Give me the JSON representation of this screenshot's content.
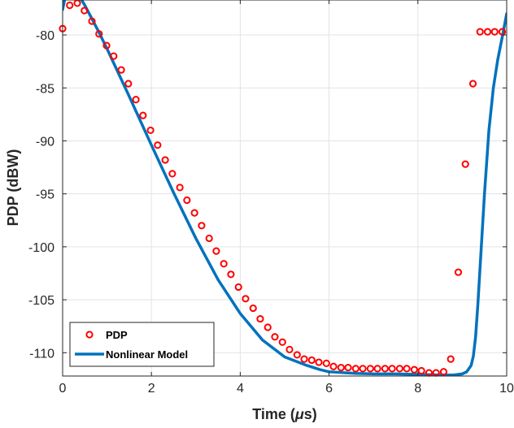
{
  "chart_data": {
    "type": "line",
    "xlabel": "Time (",
    "xlabel_mu": "μ",
    "xlabel_unit": "s)",
    "ylabel": "PDP (dBW)",
    "xlim": [
      0,
      10
    ],
    "ylim": [
      -112.2,
      -76.7
    ],
    "xticks": [
      0,
      2,
      4,
      6,
      8,
      10
    ],
    "xtick_labels": [
      "0",
      "2",
      "4",
      "6",
      "8",
      "10"
    ],
    "yticks": [
      -110,
      -105,
      -100,
      -95,
      -90,
      -85,
      -80
    ],
    "ytick_labels": [
      "-110",
      "-105",
      "-100",
      "-95",
      "-90",
      "-85",
      "-80"
    ],
    "grid": true,
    "legend_position": "bottom-left",
    "series": [
      {
        "name": "PDP",
        "style": "markers",
        "color": "#ff0000",
        "x": [
          0.0,
          0.16,
          0.33,
          0.49,
          0.66,
          0.82,
          0.99,
          1.15,
          1.32,
          1.48,
          1.65,
          1.81,
          1.98,
          2.14,
          2.31,
          2.47,
          2.64,
          2.8,
          2.97,
          3.13,
          3.3,
          3.46,
          3.63,
          3.79,
          3.96,
          4.12,
          4.29,
          4.45,
          4.62,
          4.78,
          4.95,
          5.11,
          5.28,
          5.44,
          5.61,
          5.77,
          5.94,
          6.1,
          6.27,
          6.43,
          6.6,
          6.76,
          6.93,
          7.09,
          7.26,
          7.42,
          7.59,
          7.75,
          7.92,
          8.08,
          8.25,
          8.41,
          8.58,
          8.74,
          8.91,
          9.07,
          9.24,
          9.4,
          9.57,
          9.73,
          9.9
        ],
        "y": [
          -79.4,
          -77.2,
          -77.0,
          -77.7,
          -78.7,
          -79.9,
          -81.0,
          -82.0,
          -83.3,
          -84.6,
          -86.1,
          -87.6,
          -89.0,
          -90.4,
          -91.8,
          -93.1,
          -94.4,
          -95.6,
          -96.8,
          -98.0,
          -99.2,
          -100.4,
          -101.6,
          -102.6,
          -103.8,
          -104.9,
          -105.8,
          -106.8,
          -107.6,
          -108.5,
          -109.0,
          -109.7,
          -110.2,
          -110.6,
          -110.7,
          -110.9,
          -111.0,
          -111.3,
          -111.4,
          -111.4,
          -111.5,
          -111.5,
          -111.5,
          -111.5,
          -111.5,
          -111.5,
          -111.5,
          -111.5,
          -111.6,
          -111.7,
          -111.9,
          -111.9,
          -111.8,
          -110.6,
          -102.4,
          -92.2,
          -84.6,
          -79.7,
          -79.7,
          -79.7,
          -79.7
        ]
      },
      {
        "name": "Nonlinear Model",
        "style": "line",
        "color": "#0072bd",
        "x": [
          0.0,
          0.05,
          0.1,
          0.15,
          0.2,
          0.25,
          0.3,
          0.4,
          0.5,
          0.6,
          0.8,
          1.0,
          1.2,
          1.5,
          2.0,
          2.5,
          3.0,
          3.5,
          4.0,
          4.5,
          5.0,
          5.5,
          5.8,
          6.0,
          6.2,
          6.4,
          6.6,
          7.0,
          7.5,
          8.0,
          8.5,
          8.8,
          9.0,
          9.1,
          9.2,
          9.25,
          9.3,
          9.35,
          9.4,
          9.5,
          9.6,
          9.7,
          9.8,
          9.9,
          10.0
        ],
        "y": [
          -77.6,
          -76.6,
          -76.3,
          -76.0,
          -75.9,
          -75.9,
          -76.0,
          -76.5,
          -77.2,
          -78.0,
          -79.6,
          -81.3,
          -83.1,
          -85.8,
          -90.4,
          -94.9,
          -99.2,
          -103.1,
          -106.3,
          -108.8,
          -110.4,
          -111.2,
          -111.6,
          -111.8,
          -111.85,
          -111.9,
          -111.95,
          -112.0,
          -112.0,
          -112.05,
          -112.1,
          -112.1,
          -112.0,
          -111.8,
          -111.2,
          -110.3,
          -108.5,
          -105.5,
          -102.0,
          -95.0,
          -89.0,
          -85.0,
          -82.3,
          -80.2,
          -78.0
        ]
      }
    ]
  }
}
